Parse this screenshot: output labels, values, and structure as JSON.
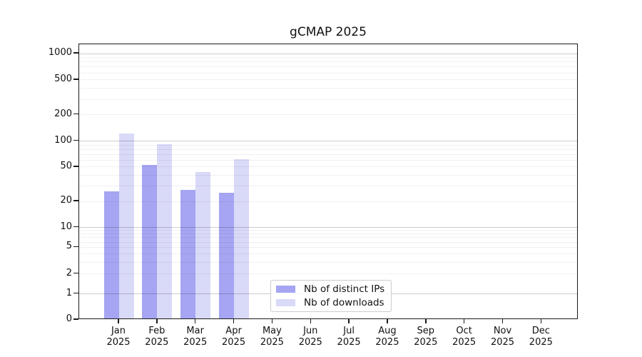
{
  "chart_data": {
    "type": "bar",
    "title": "gCMAP 2025",
    "categories": [
      "Jan 2025",
      "Feb 2025",
      "Mar 2025",
      "Apr 2025",
      "May 2025",
      "Jun 2025",
      "Jul 2025",
      "Aug 2025",
      "Sep 2025",
      "Oct 2025",
      "Nov 2025",
      "Dec 2025"
    ],
    "series": [
      {
        "name": "Nb of distinct IPs",
        "color": "#a5a5f3",
        "values": [
          26,
          53,
          27,
          25,
          0,
          0,
          0,
          0,
          0,
          0,
          0,
          0
        ]
      },
      {
        "name": "Nb of downloads",
        "color": "#d9d9f8",
        "values": [
          122,
          92,
          44,
          61,
          0,
          0,
          0,
          0,
          0,
          0,
          0,
          0
        ]
      }
    ],
    "y_ticks": [
      0,
      1,
      2,
      5,
      10,
      20,
      50,
      100,
      200,
      500,
      1000
    ],
    "y_scale": "symlog",
    "ylim": [
      0,
      1300
    ],
    "xlabel": "",
    "ylabel": "",
    "grid": true,
    "legend_position": "lower-center-inside"
  },
  "style": {
    "background": "#ffffff",
    "spine_color": "#1a1a1a",
    "grid_major_color": "#cccccc",
    "grid_minor_color": "#f0f0f0",
    "text_color": "#111111"
  }
}
